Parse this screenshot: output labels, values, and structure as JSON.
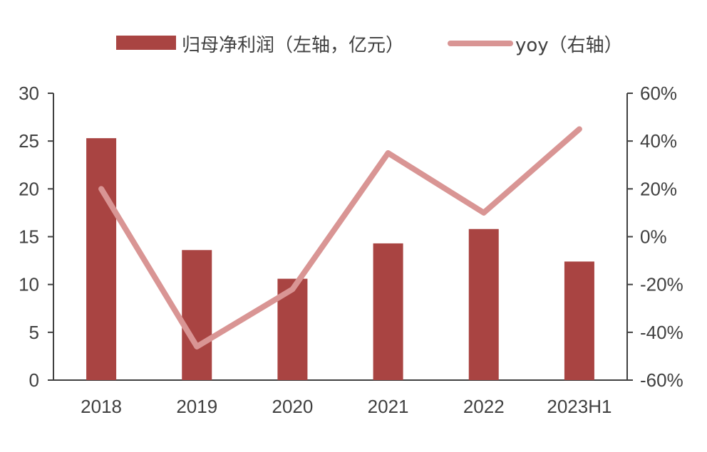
{
  "chart_data": {
    "type": "bar+line",
    "categories": [
      "2018",
      "2019",
      "2020",
      "2021",
      "2022",
      "2023H1"
    ],
    "series": [
      {
        "name": "归母净利润（左轴，亿元）",
        "type": "bar",
        "axis": "left",
        "color": "#A94442",
        "values": [
          25.3,
          13.6,
          10.6,
          14.3,
          15.8,
          12.4
        ]
      },
      {
        "name": "yoy（右轴）",
        "type": "line",
        "axis": "right",
        "color": "#D99594",
        "values": [
          20,
          -46,
          -22,
          35,
          10,
          45
        ]
      }
    ],
    "left_axis": {
      "range": [
        0,
        30
      ],
      "ticks": [
        0,
        5,
        10,
        15,
        20,
        25,
        30
      ],
      "tick_labels": [
        "0",
        "5",
        "10",
        "15",
        "20",
        "25",
        "30"
      ]
    },
    "right_axis": {
      "range": [
        -60,
        60
      ],
      "ticks": [
        -60,
        -40,
        -20,
        0,
        20,
        40,
        60
      ],
      "tick_labels": [
        "-60%",
        "-40%",
        "-20%",
        "0%",
        "20%",
        "40%",
        "60%"
      ]
    },
    "legend": {
      "placement": "top-center"
    },
    "grid": false
  }
}
